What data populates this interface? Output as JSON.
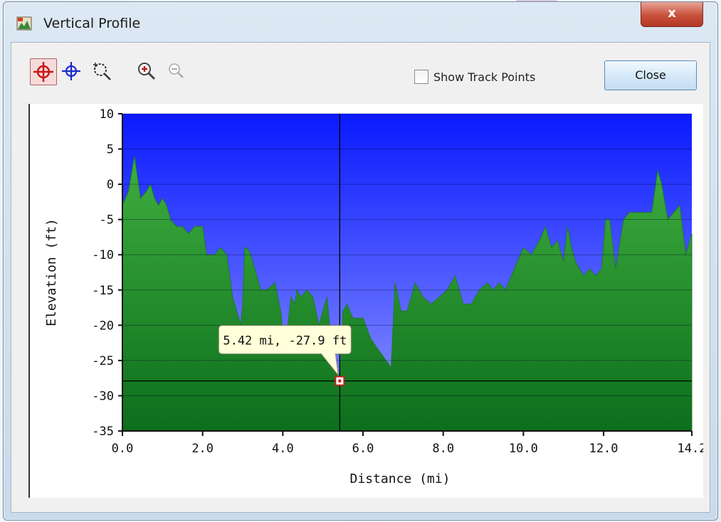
{
  "window": {
    "title": "Vertical Profile",
    "close_glyph": "x"
  },
  "toolbar": {
    "icons": [
      "select-point-red-icon",
      "select-point-blue-icon",
      "zoom-area-icon",
      "zoom-in-icon",
      "zoom-out-icon"
    ],
    "show_track_points_label": "Show Track Points",
    "show_track_points_checked": false,
    "close_label": "Close"
  },
  "tooltip": {
    "text": "5.42 mi, -27.9 ft",
    "x": 5.42,
    "y": -27.9
  },
  "colors": {
    "sky_top": "#0a1aff",
    "sky_bottom": "#8f97ff",
    "terrain_top": "#3fae3f",
    "terrain_bottom": "#0d6e1c",
    "tooltip_bg": "#ffffd9"
  },
  "chart_data": {
    "type": "area",
    "xlabel": "Distance    (mi)",
    "ylabel": "Elevation (ft)",
    "xlim": [
      0,
      14.2
    ],
    "ylim": [
      -35,
      10
    ],
    "x_ticks": [
      "0.0",
      "2.0",
      "4.0",
      "6.0",
      "8.0",
      "10.0",
      "12.0",
      "14.2"
    ],
    "x_tick_values": [
      0,
      2,
      4,
      6,
      8,
      10,
      12,
      14.2
    ],
    "y_ticks": [
      "10",
      "5",
      "0",
      "-5",
      "-10",
      "-15",
      "-20",
      "-25",
      "-30",
      "-35"
    ],
    "y_tick_values": [
      10,
      5,
      0,
      -5,
      -10,
      -15,
      -20,
      -25,
      -30,
      -35
    ],
    "grid": true,
    "cursor": {
      "x": 5.42,
      "y": -27.9
    },
    "series": [
      {
        "x": [
          0,
          0.15,
          0.3,
          0.45,
          0.6,
          0.7,
          0.8,
          0.9,
          1.0,
          1.1,
          1.2,
          1.35,
          1.5,
          1.65,
          1.8,
          2.0,
          2.1,
          2.3,
          2.45,
          2.6,
          2.75,
          2.9,
          2.95,
          3.0,
          3.05,
          3.1,
          3.2,
          3.3,
          3.45,
          3.6,
          3.8,
          3.95,
          4.05,
          4.2,
          4.3,
          4.35,
          4.45,
          4.6,
          4.75,
          4.9,
          5.1,
          5.25,
          5.3,
          5.4,
          5.42,
          5.5,
          5.6,
          5.75,
          5.9,
          6.0,
          6.2,
          6.45,
          6.7,
          6.8,
          6.95,
          7.1,
          7.3,
          7.5,
          7.7,
          7.9,
          8.1,
          8.3,
          8.5,
          8.6,
          8.7,
          8.9,
          9.1,
          9.25,
          9.4,
          9.55,
          9.7,
          9.85,
          10.0,
          10.2,
          10.4,
          10.55,
          10.7,
          10.85,
          11.0,
          11.1,
          11.2,
          11.3,
          11.5,
          11.65,
          11.8,
          11.95,
          12.05,
          12.15,
          12.3,
          12.5,
          12.65,
          12.8,
          13.0,
          13.2,
          13.35,
          13.45,
          13.6,
          13.75,
          13.9,
          14.05,
          14.2
        ],
        "values": [
          -3,
          -1,
          4,
          -2,
          -1,
          0,
          -2,
          -3,
          -2,
          -3,
          -5,
          -6,
          -6,
          -7,
          -6,
          -6,
          -10,
          -10,
          -9,
          -10,
          -16,
          -19,
          -20,
          -17,
          -9,
          -9,
          -10,
          -12,
          -15,
          -15,
          -14,
          -18,
          -24,
          -16,
          -17,
          -15,
          -16,
          -15,
          -16,
          -20,
          -16,
          -25,
          -26,
          -27,
          -27.9,
          -18,
          -17,
          -19,
          -19,
          -19,
          -22,
          -24,
          -26,
          -14,
          -18,
          -18,
          -14,
          -16,
          -17,
          -16,
          -15,
          -13,
          -17,
          -17,
          -17,
          -15,
          -14,
          -15,
          -14,
          -15,
          -13,
          -11,
          -9,
          -10,
          -8,
          -6,
          -9,
          -8,
          -11,
          -6,
          -9,
          -11,
          -13,
          -12,
          -13,
          -12,
          -5,
          -5,
          -12,
          -5,
          -4,
          -4,
          -4,
          -4,
          2,
          0,
          -5,
          -4,
          -3,
          -10,
          -7
        ]
      }
    ]
  }
}
